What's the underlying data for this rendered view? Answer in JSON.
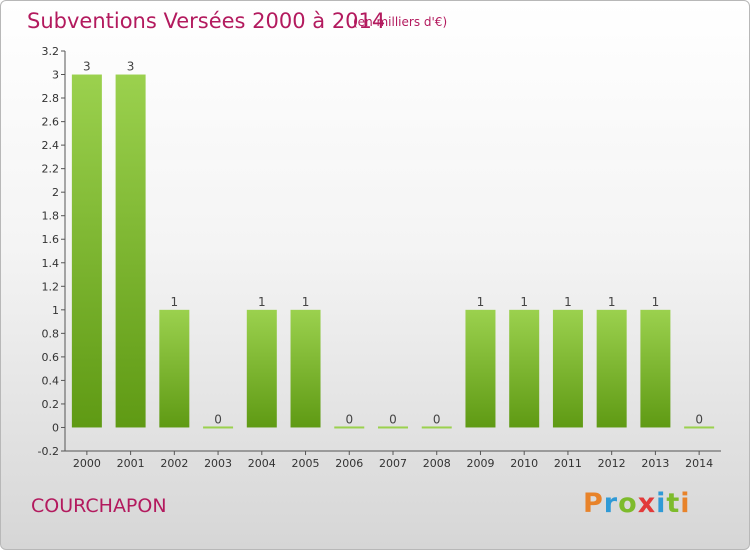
{
  "header": {
    "title": "Subventions Versées 2000 à 2014",
    "unit": "(en milliers d'€)"
  },
  "footer": {
    "commune": "COURCHAPON",
    "brand": "Proxiti",
    "brand_colors": [
      "#e8832a",
      "#2f9ad6",
      "#7dbb2c",
      "#e23a3a",
      "#2f9ad6",
      "#7dbb2c",
      "#e8832a"
    ]
  },
  "colors": {
    "accent": "#b31a5e",
    "bar_light": "#9bd14e",
    "bar_dark": "#5f9a14"
  },
  "chart_data": {
    "type": "bar",
    "categories": [
      "2000",
      "2001",
      "2002",
      "2003",
      "2004",
      "2005",
      "2006",
      "2007",
      "2008",
      "2009",
      "2010",
      "2011",
      "2012",
      "2013",
      "2014"
    ],
    "values": [
      3,
      3,
      1,
      0,
      1,
      1,
      0,
      0,
      0,
      1,
      1,
      1,
      1,
      1,
      0
    ],
    "data_labels": [
      "3",
      "3",
      "1",
      "0",
      "1",
      "1",
      "0",
      "0",
      "0",
      "1",
      "1",
      "1",
      "1",
      "1",
      "0"
    ],
    "title": "Subventions Versées 2000 à 2014",
    "xlabel": "",
    "ylabel": "",
    "ylim": [
      -0.2,
      3.2
    ],
    "yticks": [
      "-0.2",
      "0",
      "0.2",
      "0.4",
      "0.6",
      "0.8",
      "1",
      "1.2",
      "1.4",
      "1.6",
      "1.8",
      "2",
      "2.2",
      "2.4",
      "2.6",
      "2.8",
      "3",
      "3.2"
    ],
    "grid": false
  }
}
